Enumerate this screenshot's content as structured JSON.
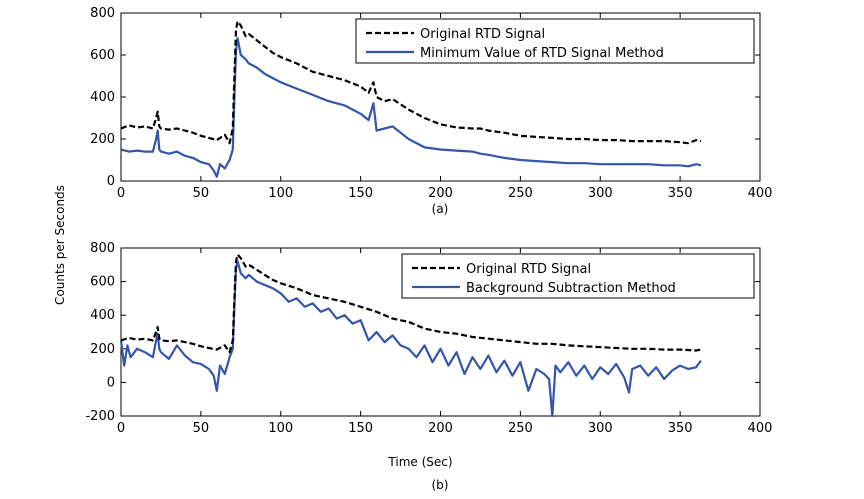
{
  "shared_ylabel": "Counts per Seconds",
  "chart_data": [
    {
      "type": "line",
      "caption": "(a)",
      "xlabel": "",
      "ylabel": "Counts per Seconds",
      "xlim": [
        0,
        400
      ],
      "ylim": [
        0,
        800
      ],
      "xticks": [
        0,
        50,
        100,
        150,
        200,
        250,
        300,
        350,
        400
      ],
      "yticks": [
        0,
        200,
        400,
        600,
        800
      ],
      "grid": false,
      "legend_position": "top-right",
      "series": [
        {
          "name": "Original RTD Signal",
          "style": "dashed",
          "color": "#000000",
          "x": [
            0,
            5,
            10,
            15,
            20,
            22,
            23,
            24,
            25,
            30,
            35,
            40,
            45,
            50,
            55,
            60,
            65,
            68,
            70,
            71,
            72,
            73,
            75,
            78,
            80,
            85,
            90,
            95,
            100,
            110,
            120,
            130,
            140,
            150,
            155,
            158,
            160,
            165,
            170,
            180,
            190,
            200,
            210,
            220,
            225,
            230,
            240,
            250,
            260,
            270,
            280,
            290,
            300,
            310,
            320,
            330,
            340,
            350,
            355,
            360,
            363
          ],
          "values": [
            250,
            265,
            255,
            260,
            250,
            300,
            330,
            260,
            250,
            245,
            250,
            240,
            230,
            215,
            205,
            195,
            220,
            180,
            250,
            500,
            720,
            760,
            740,
            690,
            700,
            670,
            640,
            610,
            590,
            560,
            520,
            500,
            480,
            450,
            420,
            470,
            400,
            380,
            390,
            340,
            300,
            270,
            255,
            250,
            250,
            240,
            230,
            215,
            210,
            205,
            200,
            200,
            195,
            195,
            190,
            190,
            190,
            185,
            180,
            195,
            190
          ]
        },
        {
          "name": "Minimum Value of RTD Signal Method",
          "style": "solid",
          "color": "#3355aa",
          "x": [
            0,
            5,
            10,
            15,
            20,
            22,
            23,
            24,
            25,
            30,
            35,
            40,
            45,
            50,
            55,
            58,
            60,
            62,
            65,
            68,
            70,
            71,
            72,
            73,
            75,
            78,
            80,
            85,
            90,
            95,
            100,
            110,
            120,
            130,
            140,
            150,
            155,
            158,
            160,
            165,
            170,
            180,
            190,
            200,
            210,
            220,
            225,
            230,
            240,
            250,
            260,
            270,
            280,
            290,
            300,
            310,
            320,
            330,
            340,
            350,
            355,
            360,
            363
          ],
          "values": [
            150,
            140,
            145,
            140,
            140,
            200,
            240,
            150,
            140,
            130,
            140,
            120,
            110,
            90,
            80,
            50,
            20,
            80,
            60,
            100,
            150,
            400,
            620,
            680,
            600,
            580,
            560,
            540,
            510,
            490,
            470,
            440,
            410,
            380,
            360,
            320,
            290,
            370,
            240,
            250,
            260,
            200,
            160,
            150,
            145,
            140,
            130,
            125,
            110,
            100,
            95,
            90,
            85,
            85,
            80,
            80,
            80,
            80,
            75,
            75,
            70,
            80,
            75
          ]
        }
      ]
    },
    {
      "type": "line",
      "caption": "(b)",
      "xlabel": "Time (Sec)",
      "ylabel": "Counts per Seconds",
      "xlim": [
        0,
        400
      ],
      "ylim": [
        -200,
        800
      ],
      "xticks": [
        0,
        50,
        100,
        150,
        200,
        250,
        300,
        350,
        400
      ],
      "yticks": [
        -200,
        0,
        200,
        400,
        600,
        800
      ],
      "grid": false,
      "legend_position": "top-right",
      "series": [
        {
          "name": "Original RTD Signal",
          "style": "dashed",
          "color": "#000000",
          "x": [
            0,
            5,
            10,
            15,
            20,
            22,
            23,
            24,
            25,
            30,
            35,
            40,
            45,
            50,
            55,
            60,
            65,
            68,
            70,
            71,
            72,
            73,
            75,
            78,
            80,
            85,
            90,
            95,
            100,
            110,
            120,
            130,
            140,
            150,
            160,
            170,
            180,
            190,
            200,
            210,
            220,
            230,
            240,
            250,
            260,
            270,
            280,
            290,
            300,
            310,
            320,
            330,
            340,
            350,
            360,
            363
          ],
          "values": [
            250,
            265,
            255,
            260,
            250,
            300,
            330,
            260,
            250,
            245,
            250,
            240,
            230,
            215,
            205,
            195,
            220,
            180,
            250,
            500,
            720,
            760,
            740,
            690,
            700,
            670,
            640,
            610,
            590,
            560,
            520,
            500,
            480,
            450,
            420,
            380,
            360,
            320,
            300,
            290,
            270,
            260,
            250,
            240,
            230,
            230,
            220,
            215,
            210,
            205,
            200,
            200,
            195,
            195,
            190,
            195
          ]
        },
        {
          "name": "Background Subtraction Method",
          "style": "solid",
          "color": "#3355aa",
          "x": [
            0,
            2,
            4,
            6,
            10,
            15,
            20,
            22,
            23,
            24,
            25,
            30,
            35,
            40,
            45,
            50,
            55,
            58,
            60,
            62,
            65,
            68,
            70,
            71,
            72,
            73,
            75,
            78,
            80,
            85,
            90,
            95,
            100,
            105,
            110,
            115,
            120,
            125,
            130,
            135,
            140,
            145,
            150,
            155,
            160,
            165,
            170,
            175,
            180,
            185,
            190,
            195,
            200,
            205,
            210,
            215,
            220,
            225,
            230,
            235,
            240,
            245,
            250,
            255,
            260,
            265,
            268,
            270,
            272,
            275,
            280,
            285,
            290,
            295,
            300,
            305,
            310,
            315,
            318,
            320,
            325,
            330,
            335,
            340,
            345,
            350,
            355,
            360,
            363
          ],
          "values": [
            250,
            100,
            220,
            150,
            200,
            180,
            150,
            250,
            290,
            200,
            180,
            140,
            220,
            160,
            120,
            110,
            80,
            40,
            -50,
            100,
            50,
            150,
            200,
            450,
            680,
            720,
            650,
            620,
            640,
            600,
            580,
            560,
            530,
            480,
            500,
            450,
            470,
            420,
            440,
            380,
            400,
            350,
            370,
            250,
            300,
            240,
            280,
            220,
            200,
            150,
            220,
            120,
            200,
            100,
            180,
            50,
            150,
            80,
            160,
            60,
            130,
            40,
            120,
            -50,
            80,
            50,
            20,
            -200,
            100,
            60,
            120,
            40,
            100,
            20,
            90,
            50,
            110,
            30,
            -60,
            80,
            100,
            40,
            90,
            20,
            70,
            100,
            80,
            90,
            130
          ]
        }
      ]
    }
  ]
}
